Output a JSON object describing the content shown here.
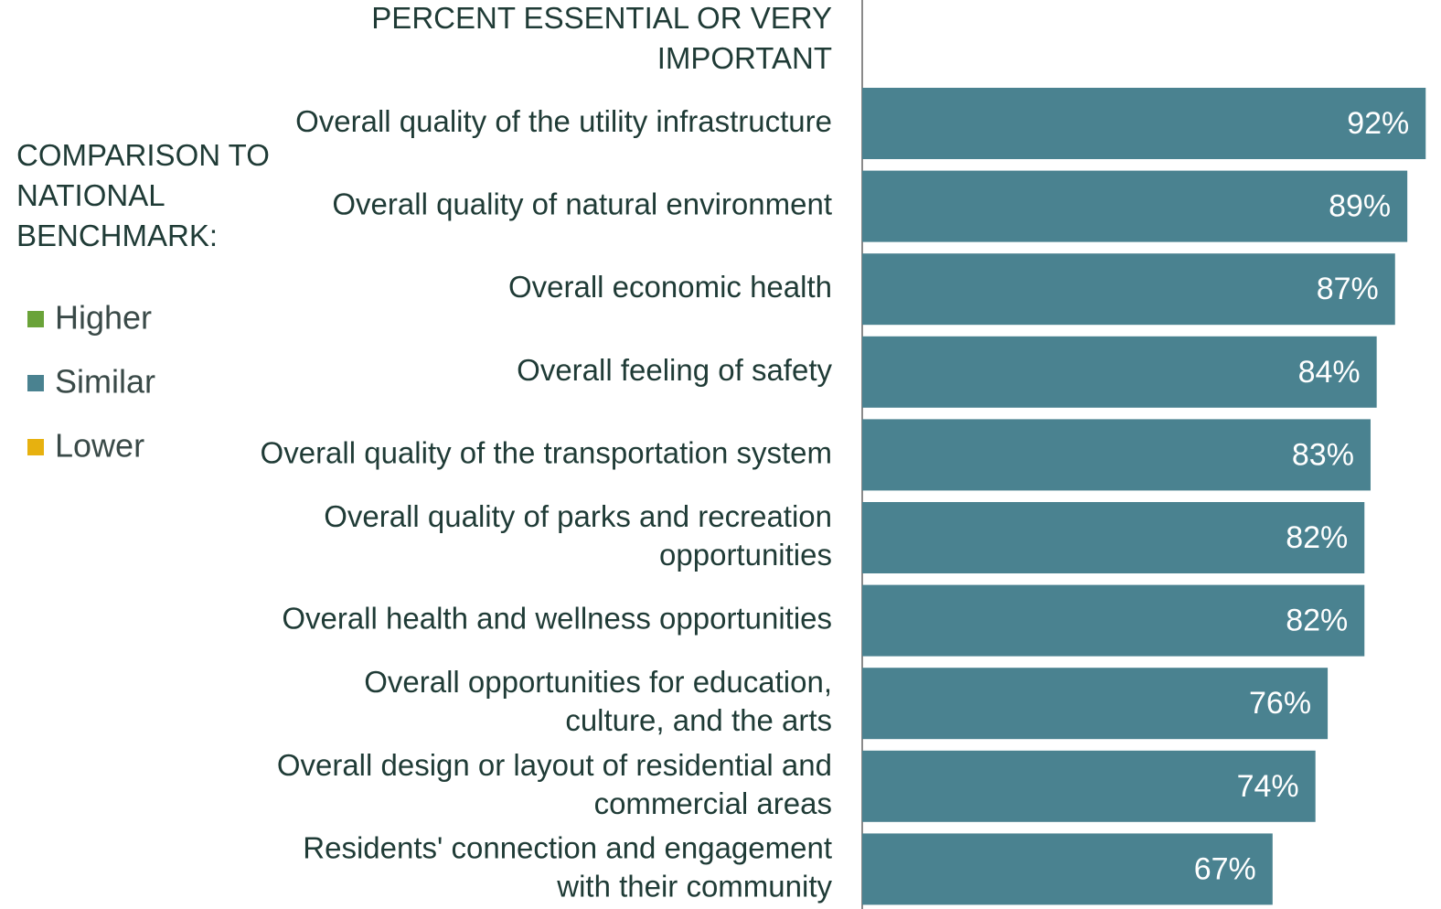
{
  "chart_data": {
    "type": "bar",
    "orientation": "horizontal",
    "title": "PERCENT ESSENTIAL OR VERY\nIMPORTANT",
    "categories": [
      "Overall quality of the utility infrastructure",
      "Overall quality of natural environment",
      "Overall economic health",
      "Overall feeling of safety",
      "Overall quality of the transportation system",
      "Overall quality of parks and recreation\nopportunities",
      "Overall health and wellness opportunities",
      "Overall opportunities for education,\nculture, and the arts",
      "Overall design or layout of residential and\ncommercial areas",
      "Residents' connection and engagement\nwith their community"
    ],
    "values": [
      92,
      89,
      87,
      84,
      83,
      82,
      82,
      76,
      74,
      67
    ],
    "value_labels": [
      "92%",
      "89%",
      "87%",
      "84%",
      "83%",
      "82%",
      "82%",
      "76%",
      "74%",
      "67%"
    ],
    "color": "#4a8290",
    "xlim": [
      0,
      94.5
    ],
    "legend": {
      "title": "COMPARISON TO\nNATIONAL\nBENCHMARK:",
      "items": [
        {
          "name": "Higher",
          "color": "#6aa339"
        },
        {
          "name": "Similar",
          "color": "#4a8290"
        },
        {
          "name": "Lower",
          "color": "#e7b10f"
        }
      ]
    }
  }
}
